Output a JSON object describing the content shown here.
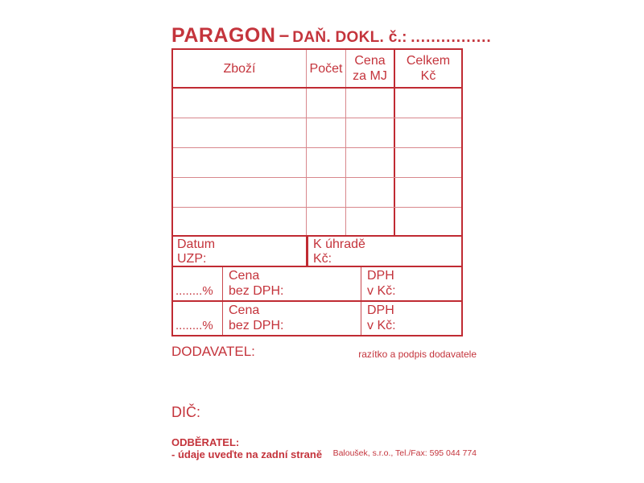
{
  "title": {
    "main": "PARAGON",
    "dash": "−",
    "sub": "DAŇ. DOKL. č.:",
    "dots": "................"
  },
  "table": {
    "headers": {
      "zbozi": "Zboží",
      "pocet": "Počet",
      "cena_mj_line1": "Cena",
      "cena_mj_line2": "za MJ",
      "celkem_line1": "Celkem",
      "celkem_line2": "Kč"
    },
    "empty_item_rows": 5
  },
  "datum_section": {
    "datum_line1": "Datum",
    "datum_line2": "UZP:",
    "kuhrade_line1": "K úhradě",
    "kuhrade_line2": "Kč:"
  },
  "dph": {
    "rows": [
      {
        "percent": "........%",
        "cena_line1": "Cena",
        "cena_line2": "bez DPH:",
        "dph_line1": "DPH",
        "dph_line2": "v Kč:"
      },
      {
        "percent": "........%",
        "cena_line1": "Cena",
        "cena_line2": "bez DPH:",
        "dph_line1": "DPH",
        "dph_line2": "v Kč:"
      }
    ]
  },
  "dodavatel_label": "DODAVATEL:",
  "razitko_note": "razítko a podpis dodavatele",
  "dic_label": "DIČ:",
  "odberatel": {
    "label": "ODBĚRATEL:",
    "note": "- údaje uveďte na zadní straně"
  },
  "footer_company": "Baloušek, s.r.o., Tel./Fax: 595 044 774",
  "colors": {
    "accent_red": "#c02b33",
    "thin_line_red": "#d8888d",
    "background": "#ffffff"
  }
}
